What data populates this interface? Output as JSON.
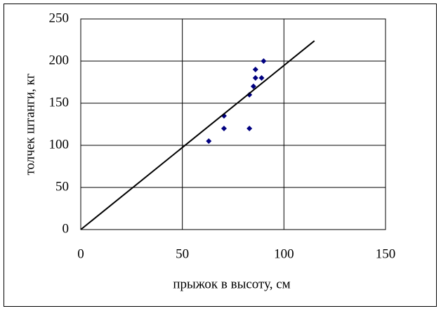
{
  "chart_data": {
    "type": "scatter",
    "x_label": "прыжок в высоту, см",
    "y_label": "толчек штанги, кг",
    "x": [
      63,
      70.5,
      70.5,
      83,
      83,
      85,
      86,
      86,
      89,
      90
    ],
    "values": [
      105,
      135,
      120,
      120,
      160,
      170,
      180,
      190,
      180,
      200
    ],
    "color": "#000080",
    "xlim": [
      0,
      150
    ],
    "ylim": [
      0,
      250
    ],
    "xticks": [
      0,
      50,
      100,
      150
    ],
    "yticks": [
      0,
      50,
      100,
      150,
      200,
      250
    ],
    "grid": true,
    "trendline": {
      "x": [
        0,
        115
      ],
      "y": [
        0,
        224
      ],
      "color": "#000000"
    }
  }
}
